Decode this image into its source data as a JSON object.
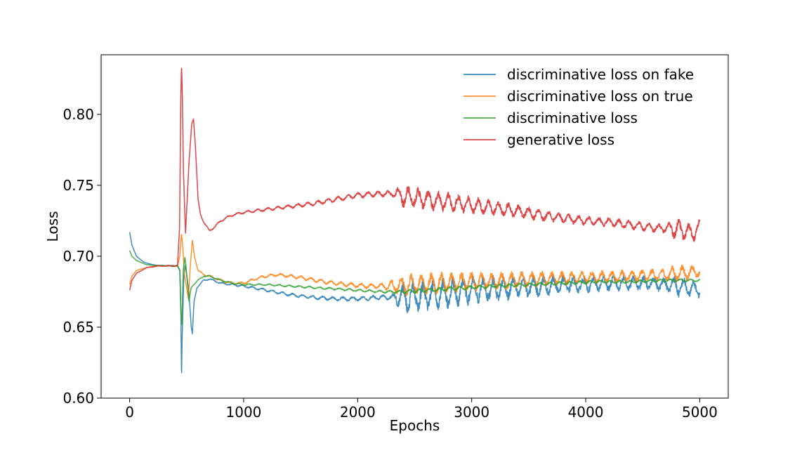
{
  "chart_data": {
    "type": "line",
    "title": "",
    "xlabel": "Epochs",
    "ylabel": "Loss",
    "xlim": [
      -250,
      5250
    ],
    "ylim": [
      0.6,
      0.842
    ],
    "grid": false,
    "legend_position": "top-right",
    "xticks": [
      0,
      1000,
      2000,
      3000,
      4000,
      5000
    ],
    "xtick_labels": [
      "0",
      "1000",
      "2000",
      "3000",
      "4000",
      "5000"
    ],
    "yticks": [
      0.6,
      0.65,
      0.7,
      0.75,
      0.8
    ],
    "ytick_labels": [
      "0.60",
      "0.65",
      "0.70",
      "0.75",
      "0.80"
    ],
    "series": [
      {
        "name": "discriminative loss on fake",
        "color": "#1f77b4",
        "keypoints": [
          [
            0,
            0.717
          ],
          [
            20,
            0.708
          ],
          [
            60,
            0.7
          ],
          [
            120,
            0.696
          ],
          [
            200,
            0.694
          ],
          [
            300,
            0.6933
          ],
          [
            420,
            0.6932
          ],
          [
            440,
            0.69
          ],
          [
            450,
            0.66
          ],
          [
            455,
            0.612
          ],
          [
            460,
            0.64
          ],
          [
            475,
            0.685
          ],
          [
            490,
            0.694
          ],
          [
            505,
            0.684
          ],
          [
            520,
            0.675
          ],
          [
            540,
            0.65
          ],
          [
            550,
            0.645
          ],
          [
            565,
            0.668
          ],
          [
            590,
            0.678
          ],
          [
            650,
            0.683
          ],
          [
            700,
            0.684
          ],
          [
            800,
            0.681
          ],
          [
            900,
            0.68
          ],
          [
            1000,
            0.679
          ],
          [
            1200,
            0.676
          ],
          [
            1400,
            0.673
          ],
          [
            1600,
            0.671
          ],
          [
            1800,
            0.67
          ],
          [
            2000,
            0.67
          ],
          [
            2200,
            0.671
          ],
          [
            2400,
            0.671
          ],
          [
            2600,
            0.672
          ],
          [
            2800,
            0.674
          ],
          [
            3000,
            0.676
          ],
          [
            3200,
            0.677
          ],
          [
            3400,
            0.678
          ],
          [
            3600,
            0.679
          ],
          [
            3800,
            0.68
          ],
          [
            4000,
            0.68
          ],
          [
            4200,
            0.681
          ],
          [
            4400,
            0.681
          ],
          [
            4600,
            0.681
          ],
          [
            4800,
            0.679
          ],
          [
            5000,
            0.676
          ]
        ],
        "noise": [
          [
            0,
            0.0
          ],
          [
            700,
            0.0005
          ],
          [
            2300,
            0.0015
          ],
          [
            2400,
            0.009
          ],
          [
            2600,
            0.009
          ],
          [
            3200,
            0.007
          ],
          [
            4000,
            0.0045
          ],
          [
            4700,
            0.004
          ],
          [
            4800,
            0.006
          ],
          [
            5000,
            0.004
          ]
        ]
      },
      {
        "name": "discriminative loss on true",
        "color": "#ff7f0e",
        "keypoints": [
          [
            0,
            0.68
          ],
          [
            20,
            0.686
          ],
          [
            60,
            0.69
          ],
          [
            150,
            0.692
          ],
          [
            250,
            0.6932
          ],
          [
            420,
            0.6932
          ],
          [
            440,
            0.7
          ],
          [
            455,
            0.716
          ],
          [
            465,
            0.708
          ],
          [
            480,
            0.688
          ],
          [
            500,
            0.678
          ],
          [
            515,
            0.67
          ],
          [
            530,
            0.69
          ],
          [
            550,
            0.711
          ],
          [
            570,
            0.7
          ],
          [
            600,
            0.69
          ],
          [
            650,
            0.687
          ],
          [
            700,
            0.686
          ],
          [
            800,
            0.683
          ],
          [
            900,
            0.681
          ],
          [
            1000,
            0.681
          ],
          [
            1100,
            0.684
          ],
          [
            1200,
            0.686
          ],
          [
            1300,
            0.687
          ],
          [
            1400,
            0.686
          ],
          [
            1500,
            0.685
          ],
          [
            1700,
            0.682
          ],
          [
            1900,
            0.68
          ],
          [
            2100,
            0.679
          ],
          [
            2300,
            0.679
          ],
          [
            2500,
            0.68
          ],
          [
            2700,
            0.681
          ],
          [
            3000,
            0.682
          ],
          [
            3300,
            0.683
          ],
          [
            3600,
            0.684
          ],
          [
            4000,
            0.685
          ],
          [
            4400,
            0.686
          ],
          [
            4700,
            0.687
          ],
          [
            4800,
            0.688
          ],
          [
            5000,
            0.689
          ]
        ],
        "noise": [
          [
            0,
            0.0
          ],
          [
            700,
            0.0006
          ],
          [
            2200,
            0.0015
          ],
          [
            2400,
            0.006
          ],
          [
            2700,
            0.006
          ],
          [
            3200,
            0.005
          ],
          [
            4000,
            0.0035
          ],
          [
            4700,
            0.0035
          ],
          [
            4800,
            0.005
          ],
          [
            5000,
            0.003
          ]
        ]
      },
      {
        "name": "discriminative loss",
        "color": "#2ca02c",
        "keypoints": [
          [
            0,
            0.704
          ],
          [
            20,
            0.7
          ],
          [
            60,
            0.697
          ],
          [
            150,
            0.694
          ],
          [
            250,
            0.6933
          ],
          [
            420,
            0.6932
          ],
          [
            440,
            0.69
          ],
          [
            450,
            0.66
          ],
          [
            458,
            0.652
          ],
          [
            470,
            0.69
          ],
          [
            485,
            0.7
          ],
          [
            500,
            0.688
          ],
          [
            520,
            0.668
          ],
          [
            540,
            0.678
          ],
          [
            560,
            0.68
          ],
          [
            600,
            0.683
          ],
          [
            650,
            0.686
          ],
          [
            700,
            0.686
          ],
          [
            800,
            0.683
          ],
          [
            900,
            0.681
          ],
          [
            1000,
            0.68
          ],
          [
            1200,
            0.68
          ],
          [
            1400,
            0.679
          ],
          [
            1600,
            0.678
          ],
          [
            1800,
            0.677
          ],
          [
            2000,
            0.676
          ],
          [
            2200,
            0.675
          ],
          [
            2400,
            0.675
          ],
          [
            2600,
            0.676
          ],
          [
            2800,
            0.677
          ],
          [
            3000,
            0.678
          ],
          [
            3200,
            0.679
          ],
          [
            3500,
            0.68
          ],
          [
            3800,
            0.681
          ],
          [
            4100,
            0.682
          ],
          [
            4400,
            0.682
          ],
          [
            4700,
            0.683
          ],
          [
            5000,
            0.683
          ]
        ],
        "noise": [
          [
            0,
            0.0
          ],
          [
            700,
            0.0004
          ],
          [
            2300,
            0.0008
          ],
          [
            2500,
            0.0012
          ],
          [
            5000,
            0.0008
          ]
        ]
      },
      {
        "name": "generative loss",
        "color": "#d62728",
        "keypoints": [
          [
            0,
            0.676
          ],
          [
            20,
            0.683
          ],
          [
            60,
            0.688
          ],
          [
            150,
            0.692
          ],
          [
            250,
            0.6932
          ],
          [
            420,
            0.6932
          ],
          [
            438,
            0.72
          ],
          [
            448,
            0.805
          ],
          [
            455,
            0.836
          ],
          [
            462,
            0.815
          ],
          [
            472,
            0.76
          ],
          [
            490,
            0.716
          ],
          [
            505,
            0.74
          ],
          [
            520,
            0.765
          ],
          [
            545,
            0.794
          ],
          [
            560,
            0.797
          ],
          [
            575,
            0.78
          ],
          [
            600,
            0.74
          ],
          [
            620,
            0.73
          ],
          [
            650,
            0.724
          ],
          [
            700,
            0.718
          ],
          [
            750,
            0.721
          ],
          [
            800,
            0.725
          ],
          [
            900,
            0.729
          ],
          [
            1000,
            0.731
          ],
          [
            1200,
            0.733
          ],
          [
            1400,
            0.735
          ],
          [
            1600,
            0.737
          ],
          [
            1800,
            0.74
          ],
          [
            2000,
            0.743
          ],
          [
            2200,
            0.744
          ],
          [
            2350,
            0.744
          ],
          [
            2400,
            0.742
          ],
          [
            2600,
            0.74
          ],
          [
            2800,
            0.738
          ],
          [
            3000,
            0.736
          ],
          [
            3200,
            0.734
          ],
          [
            3400,
            0.732
          ],
          [
            3600,
            0.729
          ],
          [
            3800,
            0.727
          ],
          [
            4000,
            0.725
          ],
          [
            4200,
            0.724
          ],
          [
            4400,
            0.722
          ],
          [
            4600,
            0.72
          ],
          [
            4800,
            0.719
          ],
          [
            4950,
            0.716
          ],
          [
            5000,
            0.721
          ]
        ],
        "noise": [
          [
            0,
            0.0
          ],
          [
            700,
            0.0006
          ],
          [
            2300,
            0.0018
          ],
          [
            2400,
            0.006
          ],
          [
            2600,
            0.006
          ],
          [
            3200,
            0.004
          ],
          [
            4000,
            0.0025
          ],
          [
            4700,
            0.0025
          ],
          [
            4800,
            0.006
          ],
          [
            5000,
            0.004
          ]
        ]
      }
    ]
  }
}
